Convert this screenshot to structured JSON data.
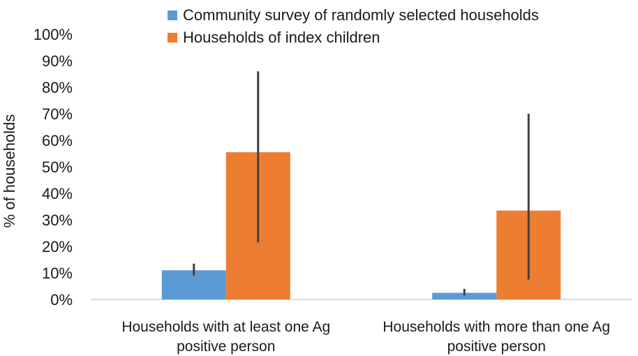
{
  "chart_data": {
    "type": "bar",
    "ylabel": "% of households",
    "xlabel": "",
    "ylim": [
      0,
      100
    ],
    "yticks": [
      "0%",
      "10%",
      "20%",
      "30%",
      "40%",
      "50%",
      "60%",
      "70%",
      "80%",
      "90%",
      "100%"
    ],
    "categories": [
      [
        "Households with at least one Ag",
        "positive person"
      ],
      [
        "Households with more than one Ag",
        "positive person"
      ]
    ],
    "series": [
      {
        "name": "Community survey of randomly selected households",
        "color": "#5b9bd5",
        "values": [
          11,
          2.5
        ],
        "error_low": [
          9,
          1.5
        ],
        "error_high": [
          13.5,
          4
        ]
      },
      {
        "name": "Households of index children",
        "color": "#ed7d31",
        "values": [
          55.5,
          33.5
        ],
        "error_low": [
          21.5,
          7.5
        ],
        "error_high": [
          86,
          70
        ]
      }
    ],
    "grid": false,
    "legend_position": "top"
  }
}
